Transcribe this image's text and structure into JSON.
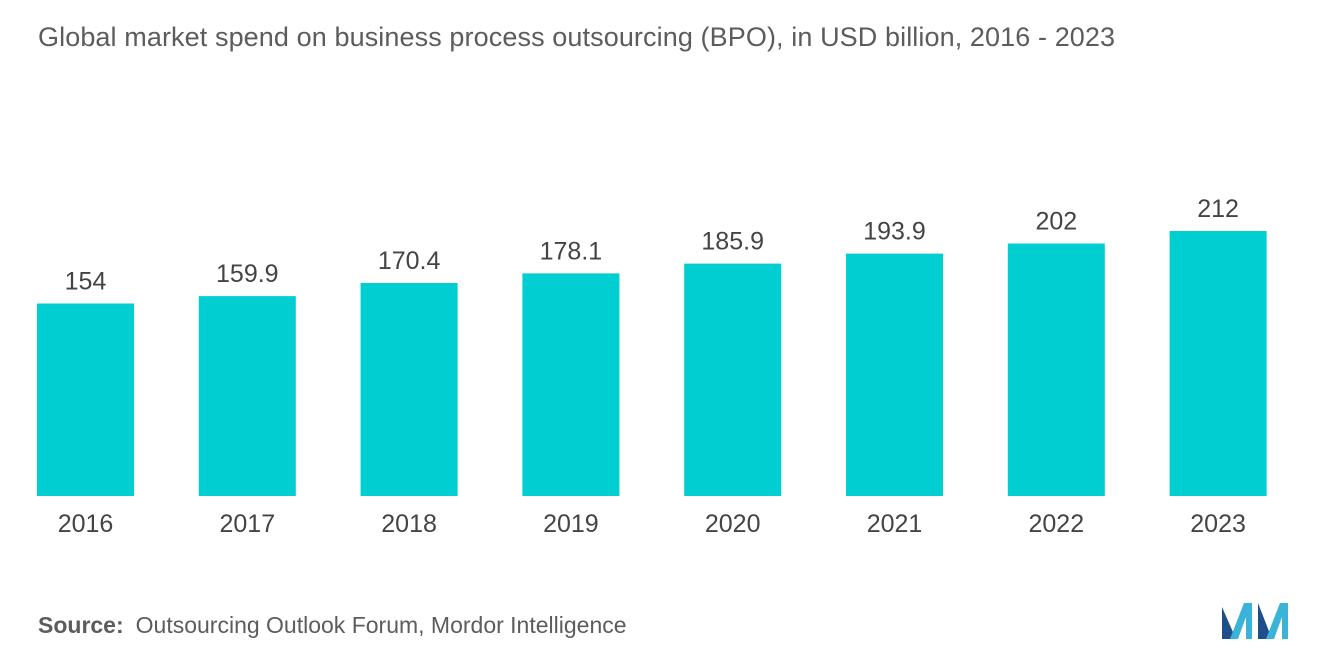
{
  "title": "Global market spend on business process outsourcing (BPO), in USD billion, 2016 - 2023",
  "source": {
    "label": "Source:",
    "text": "Outsourcing Outlook Forum, Mordor Intelligence"
  },
  "colors": {
    "bar": "#00CED1",
    "text": "#5c5c5c",
    "value_label": "#444444"
  },
  "logo": {
    "icon": "mordor-intelligence-logo-icon"
  },
  "chart_data": {
    "type": "bar",
    "title": "Global market spend on business process outsourcing (BPO), in USD billion, 2016 - 2023",
    "xlabel": "",
    "ylabel": "",
    "categories": [
      "2016",
      "2017",
      "2018",
      "2019",
      "2020",
      "2021",
      "2022",
      "2023"
    ],
    "values": [
      154,
      159.9,
      170.4,
      178.1,
      185.9,
      193.9,
      202,
      212
    ],
    "value_labels": [
      "154",
      "159.9",
      "170.4",
      "178.1",
      "185.9",
      "193.9",
      "202",
      "212"
    ],
    "ylim": [
      0,
      212
    ],
    "grid": false,
    "legend": "none"
  }
}
